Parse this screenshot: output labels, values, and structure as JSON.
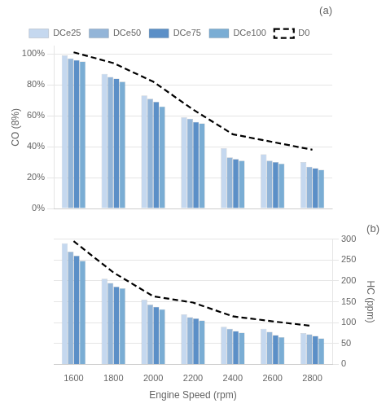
{
  "chart_data": [
    {
      "type": "bar",
      "title": "(a)",
      "categories": [
        "1600",
        "1800",
        "2000",
        "2200",
        "2400",
        "2600",
        "2800"
      ],
      "series": [
        {
          "name": "DCe25",
          "color": "#c5d8ef",
          "values": [
            0.99,
            0.87,
            0.73,
            0.59,
            0.39,
            0.35,
            0.3
          ]
        },
        {
          "name": "DCe50",
          "color": "#93b5d8",
          "values": [
            0.97,
            0.85,
            0.71,
            0.58,
            0.33,
            0.31,
            0.27
          ]
        },
        {
          "name": "DCe75",
          "color": "#5b8fc7",
          "values": [
            0.96,
            0.84,
            0.69,
            0.56,
            0.32,
            0.3,
            0.26
          ]
        },
        {
          "name": "DCe100",
          "color": "#7aadd4",
          "values": [
            0.95,
            0.82,
            0.66,
            0.55,
            0.31,
            0.29,
            0.25
          ]
        },
        {
          "name": "D0",
          "type": "line",
          "color": "#000000",
          "line_style": "dashed",
          "values": [
            1.01,
            0.94,
            0.82,
            0.64,
            0.48,
            0.43,
            0.38
          ]
        }
      ],
      "ylabel": "CO (8%)",
      "ylim": [
        0,
        1.05
      ],
      "yticks": [
        {
          "value": 0,
          "label": "0%"
        },
        {
          "value": 0.2,
          "label": "20%"
        },
        {
          "value": 0.4,
          "label": "40%"
        },
        {
          "value": 0.6,
          "label": "60%"
        },
        {
          "value": 0.8,
          "label": "80%"
        },
        {
          "value": 1.0,
          "label": "100%"
        }
      ],
      "grid": true,
      "legend": "top",
      "tick_labels": "y"
    },
    {
      "type": "bar",
      "title": "(b)",
      "categories": [
        "1600",
        "1800",
        "2000",
        "2200",
        "2400",
        "2600",
        "2800"
      ],
      "series": [
        {
          "name": "DCe25",
          "color": "#c5d8ef",
          "values": [
            290,
            205,
            155,
            120,
            90,
            85,
            75
          ]
        },
        {
          "name": "DCe50",
          "color": "#93b5d8",
          "values": [
            270,
            195,
            143,
            113,
            85,
            78,
            72
          ]
        },
        {
          "name": "DCe75",
          "color": "#5b8fc7",
          "values": [
            260,
            186,
            138,
            110,
            80,
            70,
            68
          ]
        },
        {
          "name": "DCe100",
          "color": "#7aadd4",
          "values": [
            248,
            182,
            132,
            105,
            76,
            65,
            62
          ]
        },
        {
          "name": "D0",
          "type": "line",
          "color": "#000000",
          "line_style": "dashed",
          "values": [
            295,
            220,
            163,
            148,
            115,
            103,
            92
          ]
        }
      ],
      "xlabel": "Engine Speed (rpm)",
      "ylabel": "HC (ppm)",
      "ylim": [
        0,
        300
      ],
      "yticks": [
        0,
        50,
        100,
        150,
        200,
        250,
        300
      ],
      "grid": true
    }
  ]
}
